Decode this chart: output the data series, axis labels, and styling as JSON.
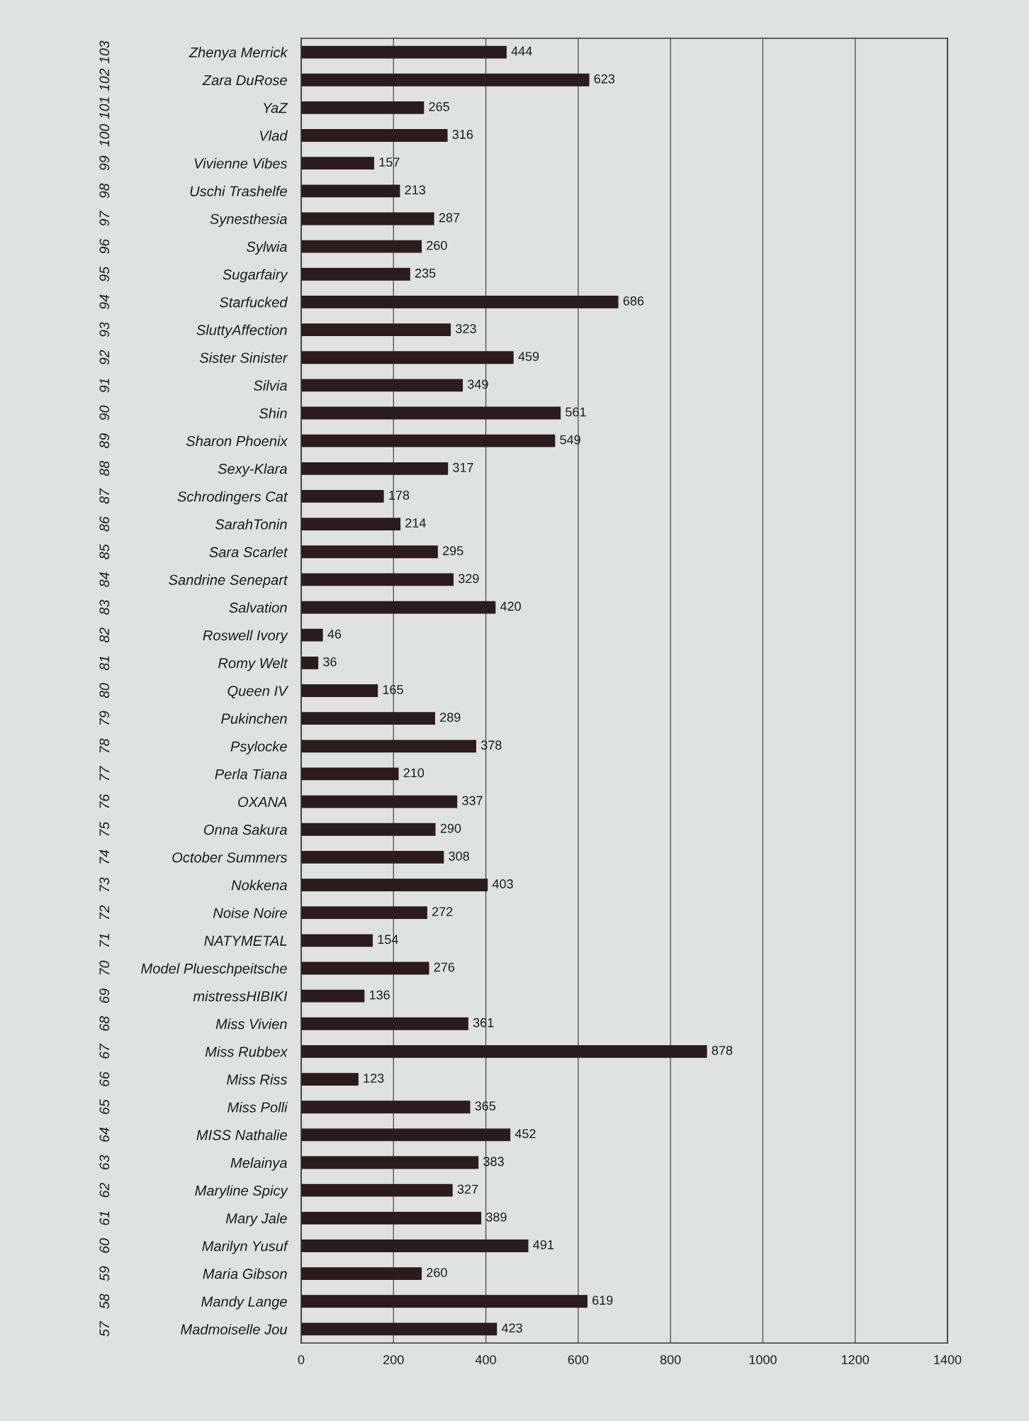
{
  "chart_data": {
    "type": "bar",
    "orientation": "horizontal",
    "categories": [
      "Zhenya Merrick",
      "Zara DuRose",
      "YaZ",
      "Vlad",
      "Vivienne Vibes",
      "Uschi Trashelfe",
      "Synesthesia",
      "Sylwia",
      "Sugarfairy",
      "Starfucked",
      "SluttyAffection",
      "Sister Sinister",
      "Silvia",
      "Shin",
      "Sharon Phoenix",
      "Sexy-Klara",
      "Schrodingers Cat",
      "SarahTonin",
      "Sara Scarlet",
      "Sandrine Senepart",
      "Salvation",
      "Roswell Ivory",
      "Romy Welt",
      "Queen IV",
      "Pukinchen",
      "Psylocke",
      "Perla Tiana",
      "OXANA",
      "Onna Sakura",
      "October Summers",
      "Nokkena",
      "Noise Noire",
      "NATYMETAL",
      "Model Plueschpeitsche",
      "mistressHIBIKI",
      "Miss Vivien",
      "Miss Rubbex",
      "Miss Riss",
      "Miss Polli",
      "MISS Nathalie",
      "Melainya",
      "Maryline Spicy",
      "Mary Jale",
      "Marilyn Yusuf",
      "Maria Gibson",
      "Mandy Lange",
      "Madmoiselle Jou"
    ],
    "y2_categories": [
      "103",
      "102",
      "101",
      "100",
      "99",
      "98",
      "97",
      "96",
      "95",
      "94",
      "93",
      "92",
      "91",
      "90",
      "89",
      "88",
      "87",
      "86",
      "85",
      "84",
      "83",
      "82",
      "81",
      "80",
      "79",
      "78",
      "77",
      "76",
      "75",
      "74",
      "73",
      "72",
      "71",
      "70",
      "69",
      "68",
      "67",
      "66",
      "65",
      "64",
      "63",
      "62",
      "61",
      "60",
      "59",
      "58",
      "57"
    ],
    "values": [
      444,
      623,
      265,
      316,
      157,
      213,
      287,
      260,
      235,
      686,
      323,
      459,
      349,
      561,
      549,
      317,
      178,
      214,
      295,
      329,
      420,
      46,
      36,
      165,
      289,
      378,
      210,
      337,
      290,
      308,
      403,
      272,
      154,
      276,
      136,
      361,
      878,
      123,
      365,
      452,
      383,
      327,
      389,
      491,
      260,
      619,
      423
    ],
    "color": "#2b1a1e",
    "xlim": [
      0,
      1400
    ],
    "xticks": [
      0,
      200,
      400,
      600,
      800,
      1000,
      1200,
      1400
    ],
    "grid": "x",
    "data_labels": true
  }
}
